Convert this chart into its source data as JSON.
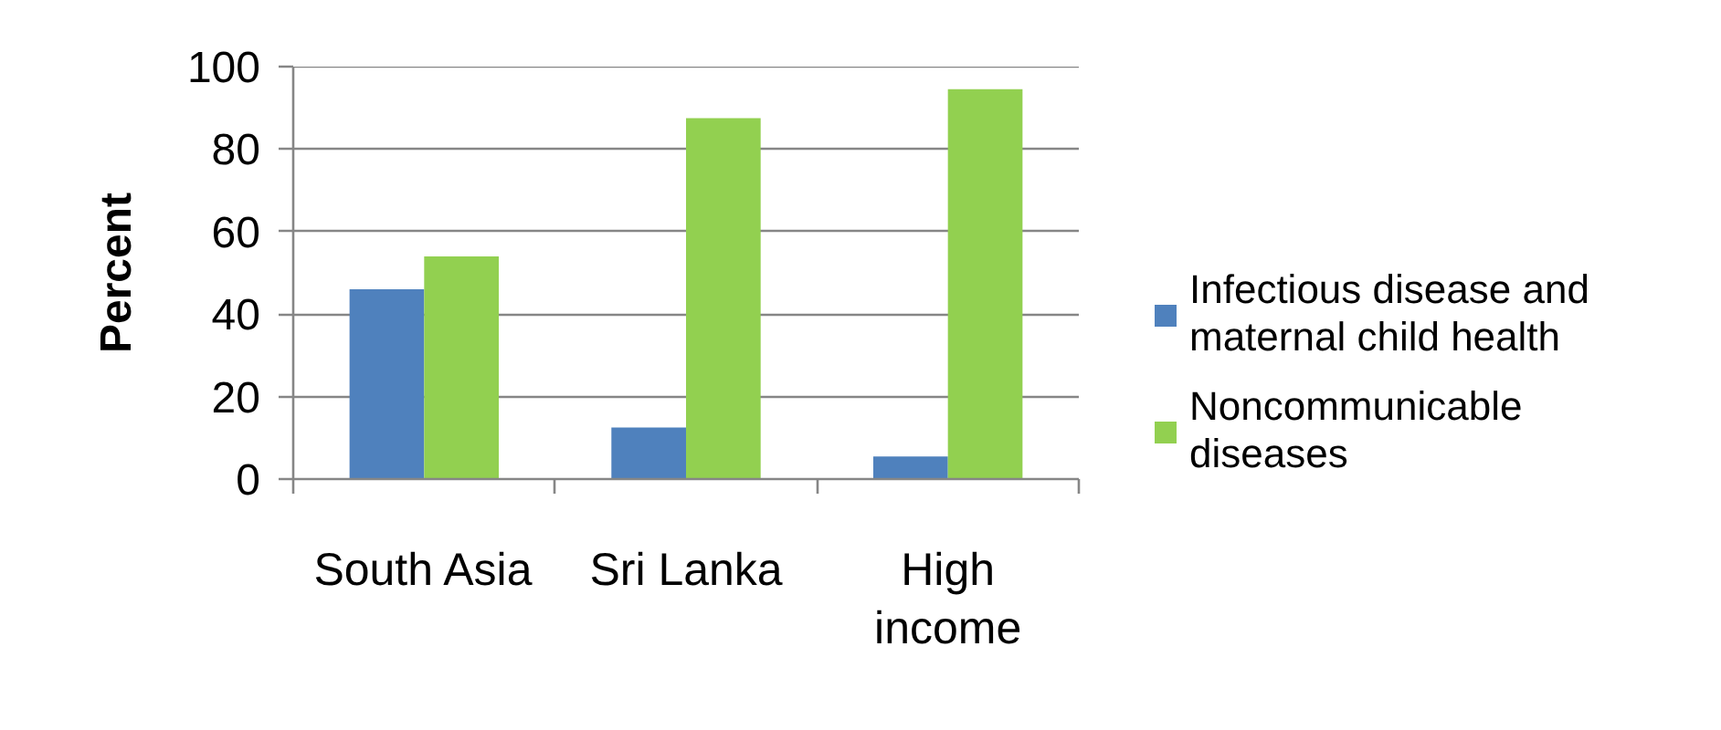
{
  "chart_data": {
    "type": "bar",
    "ylabel": "Percent",
    "categories": [
      "South Asia",
      "Sri Lanka",
      "High income"
    ],
    "series": [
      {
        "name": "Infectious disease and maternal child health",
        "color": "#4f81bd",
        "values": [
          46,
          12.5,
          5.5
        ]
      },
      {
        "name": "Noncommunicable diseases",
        "color": "#92d050",
        "values": [
          54,
          87.5,
          94.5
        ]
      }
    ],
    "ylim": [
      0,
      100
    ],
    "yticks": [
      0,
      20,
      40,
      60,
      80,
      100
    ],
    "grid": "y",
    "legend": "right"
  }
}
